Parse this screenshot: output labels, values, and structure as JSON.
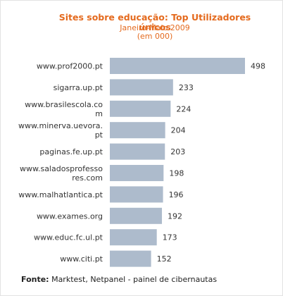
{
  "chart_data": {
    "type": "bar",
    "orientation": "horizontal",
    "title": "Sites sobre educação: Top Utilizadores únicos",
    "subtitle": [
      "Janeiro-Maio 2009",
      "(em 000)"
    ],
    "categories": [
      [
        "www.prof2000.pt"
      ],
      [
        "sigarra.up.pt"
      ],
      [
        "www.brasilescola.co",
        "m"
      ],
      [
        "www.minerva.uevora.",
        "pt"
      ],
      [
        "paginas.fe.up.pt"
      ],
      [
        "www.saladosprofesso",
        "res.com"
      ],
      [
        "www.malhatlantica.pt"
      ],
      [
        "www.exames.org"
      ],
      [
        "www.educ.fc.ul.pt"
      ],
      [
        "www.citi.pt"
      ]
    ],
    "values": [
      498,
      233,
      224,
      204,
      203,
      198,
      196,
      192,
      173,
      152
    ],
    "xlim": [
      0,
      498
    ],
    "grid": false,
    "legend": "none",
    "bar_color": "#adbbcc",
    "title_color": "#e46a1e"
  },
  "source": {
    "label": "Fonte:",
    "text": " Marktest, Netpanel - painel de cibernautas"
  }
}
